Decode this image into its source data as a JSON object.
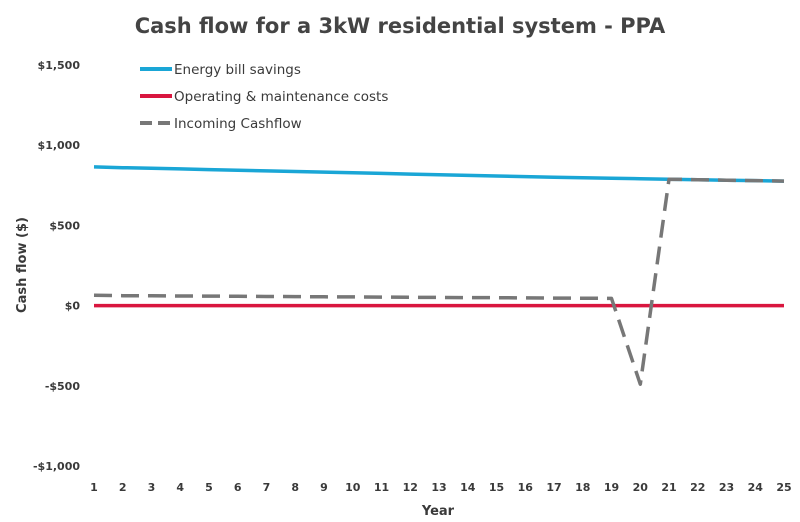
{
  "chart_data": {
    "type": "line",
    "title": "Cash flow for a 3kW residential system - PPA",
    "xlabel": "Year",
    "ylabel": "Cash flow ($)",
    "ylim": [
      -1000,
      1500
    ],
    "y_ticks": [
      1500,
      1000,
      500,
      0,
      -500,
      -1000
    ],
    "y_tick_labels": [
      "$1,500",
      "$1,000",
      "$500",
      "$0",
      "-$500",
      "-$1,000"
    ],
    "categories": [
      "1",
      "2",
      "3",
      "4",
      "5",
      "6",
      "7",
      "8",
      "9",
      "10",
      "11",
      "12",
      "13",
      "14",
      "15",
      "16",
      "17",
      "18",
      "19",
      "20",
      "21",
      "22",
      "23",
      "24",
      "25"
    ],
    "grid": false,
    "legend_position": "top-left",
    "series": [
      {
        "name": "Energy bill savings",
        "color": "#1aa6d6",
        "style": "solid",
        "values": [
          865,
          860,
          856,
          852,
          848,
          844,
          840,
          836,
          832,
          828,
          824,
          820,
          816,
          812,
          808,
          804,
          800,
          797,
          794,
          791,
          788,
          785,
          782,
          779,
          776
        ]
      },
      {
        "name": "Operating & maintenance costs",
        "color": "#d9163f",
        "style": "solid",
        "values": [
          0,
          0,
          0,
          0,
          0,
          0,
          0,
          0,
          0,
          0,
          0,
          0,
          0,
          0,
          0,
          0,
          0,
          0,
          0,
          0,
          0,
          0,
          0,
          0,
          0
        ]
      },
      {
        "name": "Incoming Cashflow",
        "color": "#777777",
        "style": "dashed",
        "values": [
          65,
          62,
          61,
          60,
          59,
          58,
          57,
          56,
          55,
          54,
          53,
          52,
          51,
          50,
          49,
          48,
          47,
          46,
          45,
          -490,
          788,
          785,
          782,
          779,
          776
        ]
      }
    ]
  }
}
